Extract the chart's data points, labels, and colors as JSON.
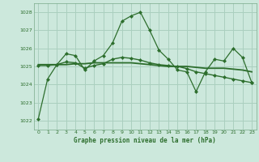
{
  "title": "Graphe pression niveau de la mer (hPa)",
  "background_color": "#cce8dc",
  "grid_color": "#aacfbf",
  "line_color": "#2d6e2d",
  "marker_color": "#2d6e2d",
  "xlim": [
    -0.5,
    23.5
  ],
  "ylim": [
    1021.5,
    1028.5
  ],
  "yticks": [
    1022,
    1023,
    1024,
    1025,
    1026,
    1027,
    1028
  ],
  "xticks": [
    0,
    1,
    2,
    3,
    4,
    5,
    6,
    7,
    8,
    9,
    10,
    11,
    12,
    13,
    14,
    15,
    16,
    17,
    18,
    19,
    20,
    21,
    22,
    23
  ],
  "series1_y": [
    1022.1,
    1024.3,
    1025.1,
    1025.7,
    1025.6,
    1024.8,
    1025.3,
    1025.6,
    1026.3,
    1027.5,
    1027.8,
    1028.0,
    1027.0,
    1025.9,
    1025.4,
    1024.8,
    1024.7,
    1023.6,
    1024.7,
    1025.4,
    1025.3,
    1026.0,
    1025.5,
    1024.1
  ],
  "series2_y": [
    1025.1,
    1025.1,
    1025.1,
    1025.1,
    1025.15,
    1025.15,
    1025.2,
    1025.2,
    1025.2,
    1025.2,
    1025.2,
    1025.15,
    1025.1,
    1025.05,
    1025.0,
    1025.0,
    1025.0,
    1024.95,
    1024.9,
    1024.9,
    1024.9,
    1024.85,
    1024.8,
    1024.7
  ],
  "series3_y": [
    1025.05,
    1025.05,
    1025.1,
    1025.25,
    1025.2,
    1024.9,
    1025.05,
    1025.15,
    1025.4,
    1025.5,
    1025.45,
    1025.35,
    1025.2,
    1025.1,
    1025.05,
    1025.0,
    1024.88,
    1024.7,
    1024.6,
    1024.5,
    1024.4,
    1024.3,
    1024.2,
    1024.1
  ]
}
